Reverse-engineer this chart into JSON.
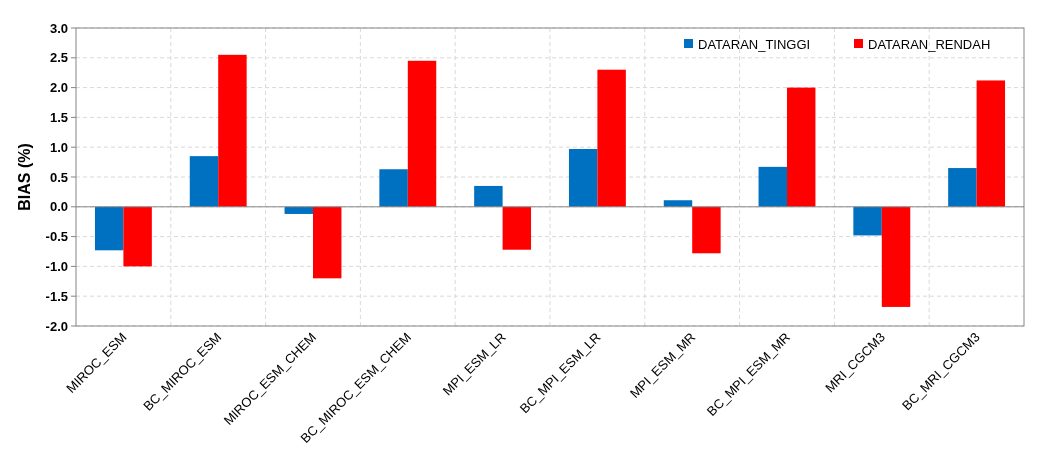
{
  "chart_data": {
    "type": "bar",
    "ylabel": "BIAS (%)",
    "categories": [
      "MIROC_ESM",
      "BC_MIROC_ESM",
      "MIROC_ESM_CHEM",
      "BC_MIROC_ESM_CHEM",
      "MPI_ESM_LR",
      "BC_MPI_ESM_LR",
      "MPI_ESM_MR",
      "BC_MPI_ESM_MR",
      "MRI_CGCM3",
      "BC_MRI_CGCM3"
    ],
    "series": [
      {
        "name": "DATARAN_TINGGI",
        "color": "#0070c0",
        "values": [
          -0.73,
          0.85,
          -0.12,
          0.63,
          0.35,
          0.97,
          0.11,
          0.67,
          -0.48,
          0.65
        ]
      },
      {
        "name": "DATARAN_RENDAH",
        "color": "#ff0000",
        "values": [
          -1.0,
          2.55,
          -1.2,
          2.45,
          -0.72,
          2.3,
          -0.78,
          2.0,
          -1.68,
          2.12
        ]
      }
    ],
    "ylim": [
      -2.0,
      3.0
    ],
    "yticks": [
      {
        "value": -2,
        "label": "-2.0"
      },
      {
        "value": -1.5,
        "label": "-1.5"
      },
      {
        "value": -1,
        "label": "-1.0"
      },
      {
        "value": -0.5,
        "label": "-0.5"
      },
      {
        "value": 0,
        "label": "0.0"
      },
      {
        "value": 0.5,
        "label": "0.5"
      },
      {
        "value": 1,
        "label": "1.0"
      },
      {
        "value": 1.5,
        "label": "1.5"
      },
      {
        "value": 2,
        "label": "2.0"
      },
      {
        "value": 2.5,
        "label": "2.5"
      },
      {
        "value": 3,
        "label": "3.0"
      }
    ],
    "grid": true,
    "legend": "top right"
  }
}
